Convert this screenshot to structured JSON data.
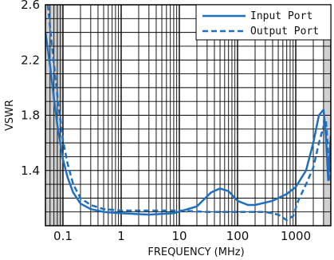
{
  "chart_data": {
    "type": "line",
    "xlabel": "FREQUENCY (MHz)",
    "ylabel": "VSWR",
    "x_scale": "log",
    "xlim": [
      0.05,
      4000
    ],
    "ylim": [
      1.0,
      2.6
    ],
    "x_ticks": [
      0.1,
      1,
      10,
      100,
      1000
    ],
    "x_tick_labels": [
      "0.1",
      "1",
      "10",
      "100",
      "1000"
    ],
    "y_ticks": [
      1.4,
      1.8,
      2.2,
      2.6
    ],
    "y_tick_labels": [
      "1.4",
      "1.8",
      "2.2",
      "2.6"
    ],
    "grid": true,
    "legend_position": "top-right",
    "colors": {
      "series": "#1f6fbf",
      "grid": "#000000",
      "shade": "#d0d0d0"
    },
    "series": [
      {
        "name": "Input Port",
        "style": "solid",
        "points": [
          [
            0.05,
            2.4
          ],
          [
            0.06,
            2.16
          ],
          [
            0.07,
            1.92
          ],
          [
            0.08,
            1.73
          ],
          [
            0.09,
            1.6
          ],
          [
            0.1,
            1.48
          ],
          [
            0.12,
            1.35
          ],
          [
            0.15,
            1.24
          ],
          [
            0.2,
            1.16
          ],
          [
            0.3,
            1.12
          ],
          [
            0.5,
            1.1
          ],
          [
            1,
            1.09
          ],
          [
            3,
            1.08
          ],
          [
            8,
            1.09
          ],
          [
            20,
            1.14
          ],
          [
            35,
            1.24
          ],
          [
            50,
            1.27
          ],
          [
            70,
            1.25
          ],
          [
            100,
            1.18
          ],
          [
            150,
            1.15
          ],
          [
            200,
            1.15
          ],
          [
            400,
            1.18
          ],
          [
            700,
            1.23
          ],
          [
            1000,
            1.28
          ],
          [
            1500,
            1.4
          ],
          [
            2000,
            1.6
          ],
          [
            2500,
            1.8
          ],
          [
            3000,
            1.84
          ],
          [
            3300,
            1.65
          ],
          [
            3600,
            1.33
          ],
          [
            3800,
            1.5
          ],
          [
            4000,
            1.65
          ]
        ]
      },
      {
        "name": "Output Port",
        "style": "dashed",
        "points": [
          [
            0.055,
            2.6
          ],
          [
            0.065,
            2.3
          ],
          [
            0.075,
            2.05
          ],
          [
            0.085,
            1.85
          ],
          [
            0.1,
            1.62
          ],
          [
            0.12,
            1.45
          ],
          [
            0.15,
            1.3
          ],
          [
            0.2,
            1.2
          ],
          [
            0.3,
            1.15
          ],
          [
            0.5,
            1.12
          ],
          [
            1,
            1.11
          ],
          [
            3,
            1.11
          ],
          [
            10,
            1.11
          ],
          [
            30,
            1.1
          ],
          [
            100,
            1.1
          ],
          [
            300,
            1.1
          ],
          [
            500,
            1.08
          ],
          [
            700,
            1.04
          ],
          [
            900,
            1.07
          ],
          [
            1100,
            1.18
          ],
          [
            1500,
            1.3
          ],
          [
            2000,
            1.42
          ],
          [
            2500,
            1.6
          ],
          [
            3000,
            1.72
          ],
          [
            3300,
            1.76
          ],
          [
            3500,
            1.6
          ],
          [
            3700,
            1.32
          ],
          [
            4000,
            1.55
          ]
        ]
      }
    ]
  }
}
